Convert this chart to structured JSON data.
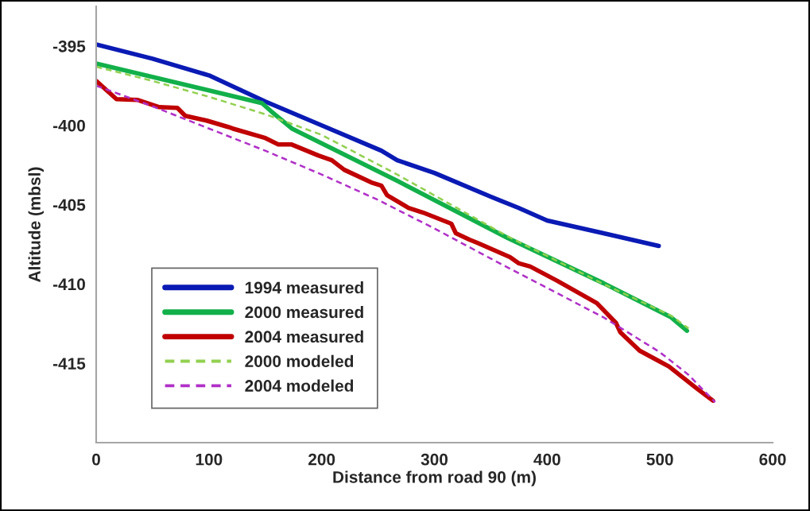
{
  "chart_data": {
    "type": "line",
    "xlabel": "Distance from road 90 (m)",
    "ylabel": "Altitude (mbsl)",
    "xlim": [
      0,
      600
    ],
    "xticks": [
      0,
      100,
      200,
      300,
      400,
      500,
      600
    ],
    "ylim": [
      -420,
      -392.5
    ],
    "yticks": [
      -395,
      -400,
      -405,
      -410,
      -415
    ],
    "grid": false,
    "legend": "bottom left",
    "marker": "none",
    "series": [
      {
        "name": "1994 measured",
        "color": "#0a1ab4",
        "line_style": "solid",
        "x": [
          0,
          50,
          100,
          150,
          200,
          253,
          267,
          300,
          350,
          374.5,
          400,
          450,
          499
        ],
        "values": [
          -394.9,
          -395.8,
          -396.85,
          -398.5,
          -400.0,
          -401.6,
          -402.2,
          -403.0,
          -404.5,
          -405.2,
          -406.0,
          -406.8,
          -407.6
        ]
      },
      {
        "name": "2000 measured",
        "color": "#12b04a",
        "line_style": "solid",
        "x": [
          0,
          147,
          155,
          173.5,
          267,
          365,
          450,
          510,
          524
        ],
        "values": [
          -396.1,
          -398.6,
          -399.1,
          -400.2,
          -403.5,
          -407.1,
          -409.95,
          -412.1,
          -412.95
        ]
      },
      {
        "name": "2004 measured",
        "color": "#c00000",
        "line_style": "solid",
        "x": [
          0,
          18,
          37,
          56,
          72,
          79,
          98,
          117,
          121,
          150,
          161.5,
          173,
          197,
          209,
          220,
          244,
          253,
          258,
          277,
          290,
          315,
          319,
          331,
          338,
          367,
          375,
          385,
          409,
          424,
          444,
          461,
          465,
          482,
          499,
          508,
          533,
          547
        ],
        "values": [
          -397.2,
          -398.35,
          -398.4,
          -398.85,
          -398.9,
          -399.4,
          -399.7,
          -400.1,
          -400.2,
          -400.8,
          -401.2,
          -401.2,
          -401.9,
          -402.2,
          -402.8,
          -403.6,
          -403.8,
          -404.4,
          -405.2,
          -405.5,
          -406.2,
          -406.8,
          -407.2,
          -407.4,
          -408.3,
          -408.7,
          -408.9,
          -409.8,
          -410.4,
          -411.2,
          -412.45,
          -413.05,
          -414.2,
          -414.85,
          -415.2,
          -416.6,
          -417.35
        ]
      },
      {
        "name": "2000 modeled",
        "color": "#92d050",
        "line_style": "dashed",
        "x": [
          0,
          50,
          100,
          150,
          200,
          267,
          365,
          450,
          510,
          525.5
        ],
        "values": [
          -396.3,
          -397.2,
          -398.2,
          -399.3,
          -400.6,
          -403.1,
          -407.0,
          -410.0,
          -412.0,
          -412.8
        ]
      },
      {
        "name": "2004 modeled",
        "color": "#b030c8",
        "line_style": "dashed",
        "x": [
          0,
          50,
          100,
          150,
          200,
          250,
          300,
          350,
          400,
          450,
          500,
          525,
          549
        ],
        "values": [
          -397.5,
          -398.8,
          -400.2,
          -401.6,
          -403.1,
          -404.7,
          -406.5,
          -408.4,
          -410.25,
          -412.1,
          -414.3,
          -415.7,
          -417.45
        ]
      }
    ]
  }
}
